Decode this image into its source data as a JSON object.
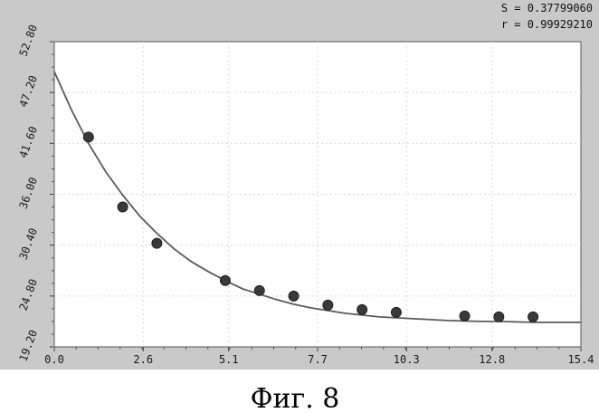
{
  "caption": "Фиг. 8",
  "stats": {
    "s_line": "S = 0.37799060",
    "r_line": "r = 0.99929210"
  },
  "colors": {
    "panel": "#c9c9c9",
    "plot_bg": "#ffffff",
    "curve": "#5a5a5a",
    "marker": "#3a3a3a",
    "grid": "#d8d8d8"
  },
  "chart_data": {
    "type": "scatter",
    "title": "",
    "xlabel": "",
    "ylabel": "",
    "xlim": [
      0.0,
      15.4
    ],
    "ylim": [
      19.2,
      52.8
    ],
    "x_ticks": [
      "0.0",
      "2.6",
      "5.1",
      "7.7",
      "10.3",
      "12.8",
      "15.4"
    ],
    "y_ticks": [
      "19.20",
      "24.80",
      "30.40",
      "36.00",
      "41.60",
      "47.20",
      "52.80"
    ],
    "grid": true,
    "points": {
      "x": [
        1.0,
        2.0,
        3.0,
        5.0,
        6.0,
        7.0,
        8.0,
        9.0,
        10.0,
        12.0,
        13.0,
        14.0
      ],
      "y": [
        42.3,
        34.6,
        30.6,
        26.5,
        25.4,
        24.8,
        23.8,
        23.3,
        23.0,
        22.6,
        22.5,
        22.5
      ]
    },
    "fit_curve": {
      "model": "exponential decay",
      "x": [
        0.0,
        0.5,
        1.0,
        1.5,
        2.0,
        2.5,
        3.0,
        3.5,
        4.0,
        4.5,
        5.0,
        5.5,
        6.0,
        6.5,
        7.0,
        7.5,
        8.0,
        8.5,
        9.0,
        9.5,
        10.0,
        10.5,
        11.0,
        11.5,
        12.0,
        12.5,
        13.0,
        13.5,
        14.0,
        14.5,
        15.0,
        15.4
      ],
      "y": [
        49.5,
        45.3,
        41.6,
        38.5,
        35.9,
        33.6,
        31.7,
        30.0,
        28.6,
        27.5,
        26.5,
        25.6,
        25.0,
        24.4,
        23.9,
        23.5,
        23.2,
        22.9,
        22.7,
        22.5,
        22.4,
        22.3,
        22.2,
        22.1,
        22.05,
        22.0,
        22.0,
        21.95,
        21.9,
        21.9,
        21.9,
        21.9
      ]
    }
  }
}
